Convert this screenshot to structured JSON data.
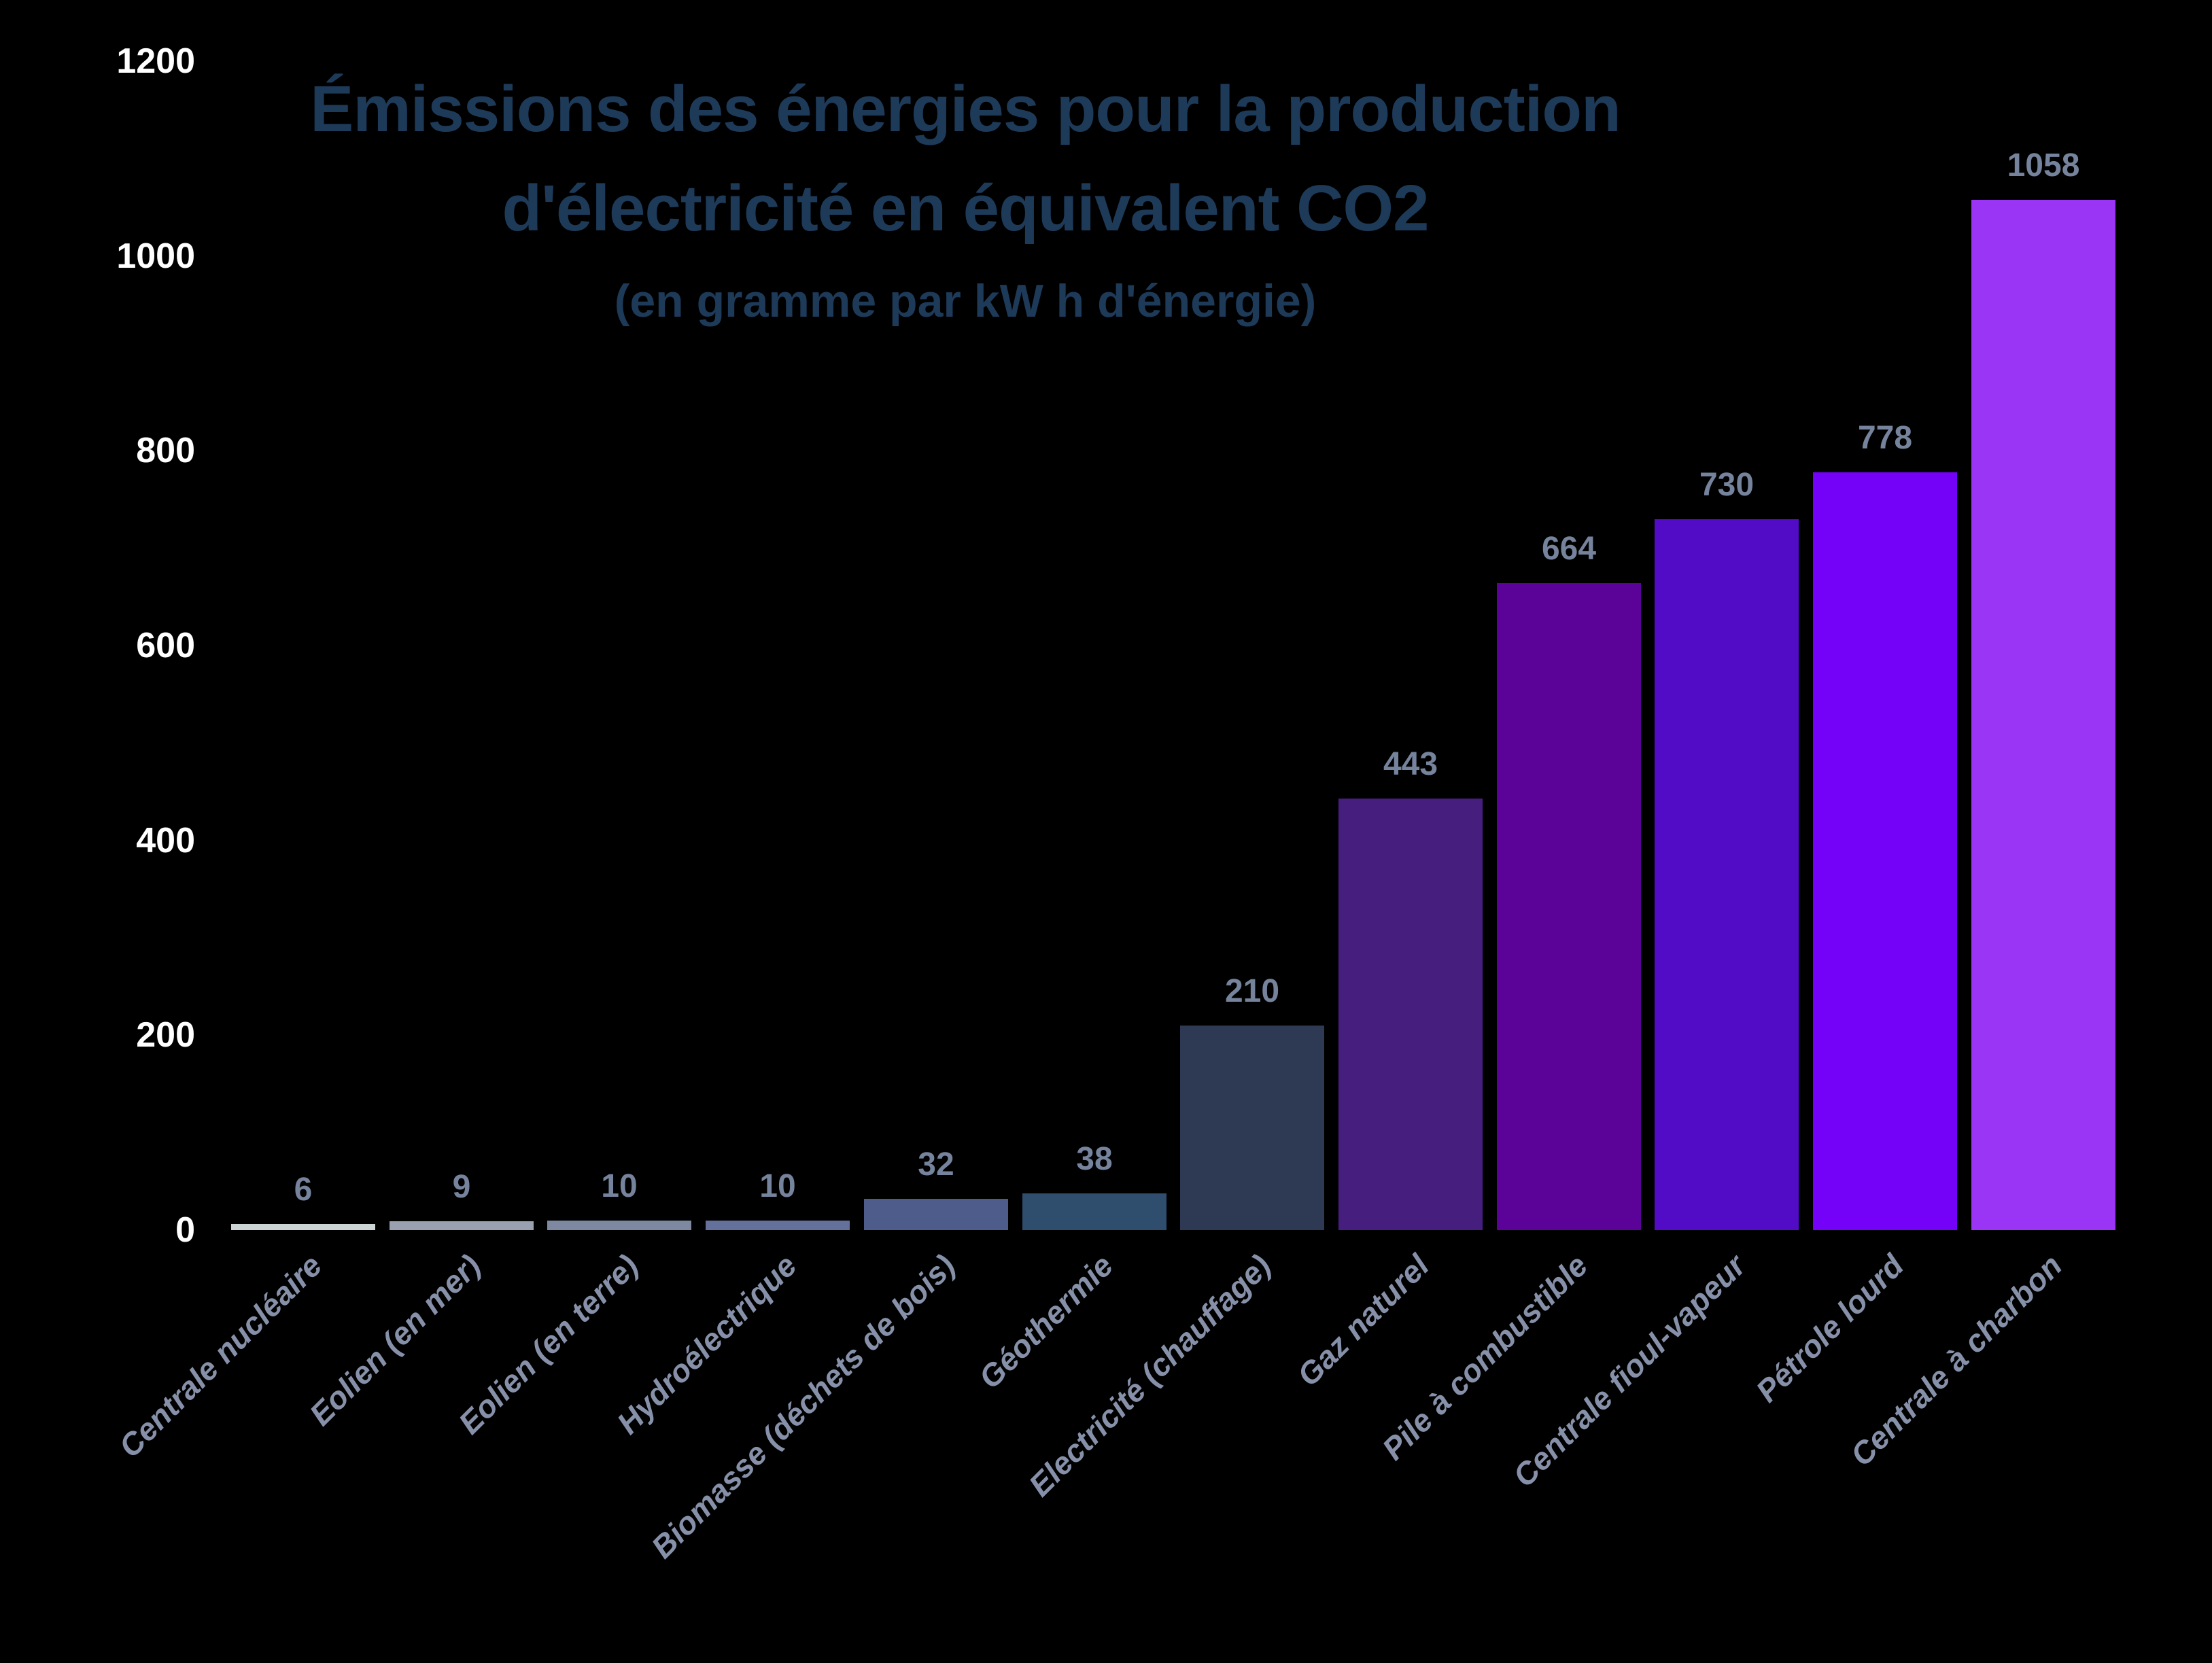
{
  "title": {
    "line1": "Émissions des énergies pour la production",
    "line2": "d'électricité en équivalent CO2",
    "subtitle": "(en gramme par kW h d'énergie)"
  },
  "colors": {
    "background": "#000000",
    "title": "#1e3a59",
    "axis_tick": "#ffffff",
    "value_label": "#76839c",
    "category_label": "#8691a9"
  },
  "chart_data": {
    "type": "bar",
    "title": "Émissions des énergies pour la production d'électricité en équivalent CO2",
    "subtitle": "(en gramme par kW h d'énergie)",
    "xlabel": "",
    "ylabel": "",
    "ylim": [
      0,
      1200
    ],
    "yticks": [
      0,
      200,
      400,
      600,
      800,
      1000,
      1200
    ],
    "grid": false,
    "legend": false,
    "value_labels_shown": true,
    "categories": [
      "Centrale nucléaire",
      "Eolien (en mer)",
      "Eolien (en terre)",
      "Hydroélectrique",
      "Biomasse (déchets de bois)",
      "Géothermie",
      "Electricité (chauffage)",
      "Gaz naturel",
      "Pile à combustible",
      "Centrale fioul-vapeur",
      "Pétrole lourd",
      "Centrale à charbon"
    ],
    "values": [
      6,
      9,
      10,
      10,
      32,
      38,
      210,
      443,
      664,
      730,
      778,
      1058
    ],
    "bar_colors": [
      "#ccd5d4",
      "#99a1b1",
      "#7e89a1",
      "#64719a",
      "#4d5c8b",
      "#2f4e6d",
      "#2e3954",
      "#451e7e",
      "#5b0399",
      "#530cc6",
      "#7502f8",
      "#9a35f5"
    ]
  }
}
